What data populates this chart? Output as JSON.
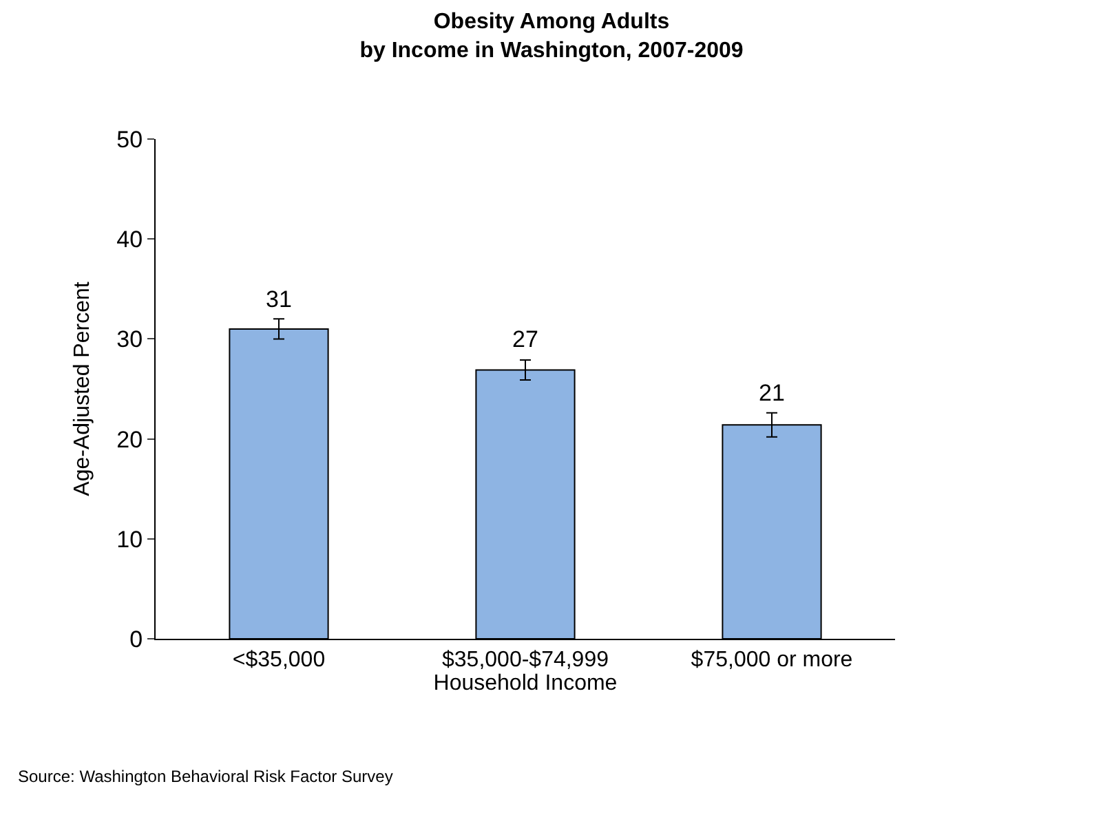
{
  "chart_data": {
    "type": "bar",
    "title": "Obesity Among Adults\nby Income in Washington, 2007-2009",
    "xlabel": "Household Income",
    "ylabel": "Age-Adjusted Percent",
    "categories": [
      "<$35,000",
      "$35,000-$74,999",
      "$75,000 or more"
    ],
    "values": [
      31.0,
      26.9,
      21.4
    ],
    "value_labels": [
      "31",
      "27",
      "21"
    ],
    "errors": [
      1.0,
      1.0,
      1.2
    ],
    "color": "#8eb4e3",
    "ylim": [
      0,
      50
    ],
    "yticks": [
      0,
      10,
      20,
      30,
      40,
      50
    ],
    "legend": false,
    "annotations": [
      "Source: Washington Behavioral Risk Factor Survey"
    ]
  }
}
